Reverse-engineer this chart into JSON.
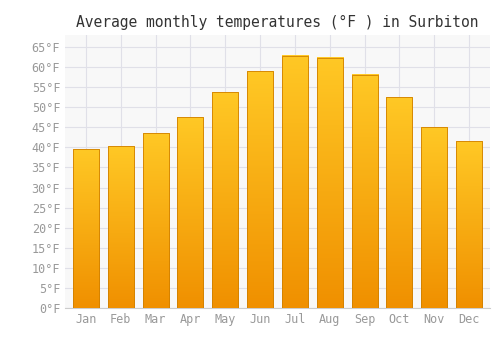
{
  "title": "Average monthly temperatures (°F ) in Surbiton",
  "months": [
    "Jan",
    "Feb",
    "Mar",
    "Apr",
    "May",
    "Jun",
    "Jul",
    "Aug",
    "Sep",
    "Oct",
    "Nov",
    "Dec"
  ],
  "values": [
    39.5,
    40.3,
    43.5,
    47.5,
    53.8,
    59.0,
    62.8,
    62.3,
    58.1,
    52.5,
    45.0,
    41.5
  ],
  "bar_color_top": "#FFC825",
  "bar_color_bottom": "#F09000",
  "bar_edge_color": "#D08000",
  "background_color": "#FFFFFF",
  "plot_bg_color": "#F8F8F8",
  "grid_color": "#E0E0E8",
  "ylim": [
    0,
    68
  ],
  "yticks": [
    0,
    5,
    10,
    15,
    20,
    25,
    30,
    35,
    40,
    45,
    50,
    55,
    60,
    65
  ],
  "title_fontsize": 10.5,
  "tick_fontsize": 8.5,
  "tick_color": "#999999",
  "title_color": "#333333"
}
